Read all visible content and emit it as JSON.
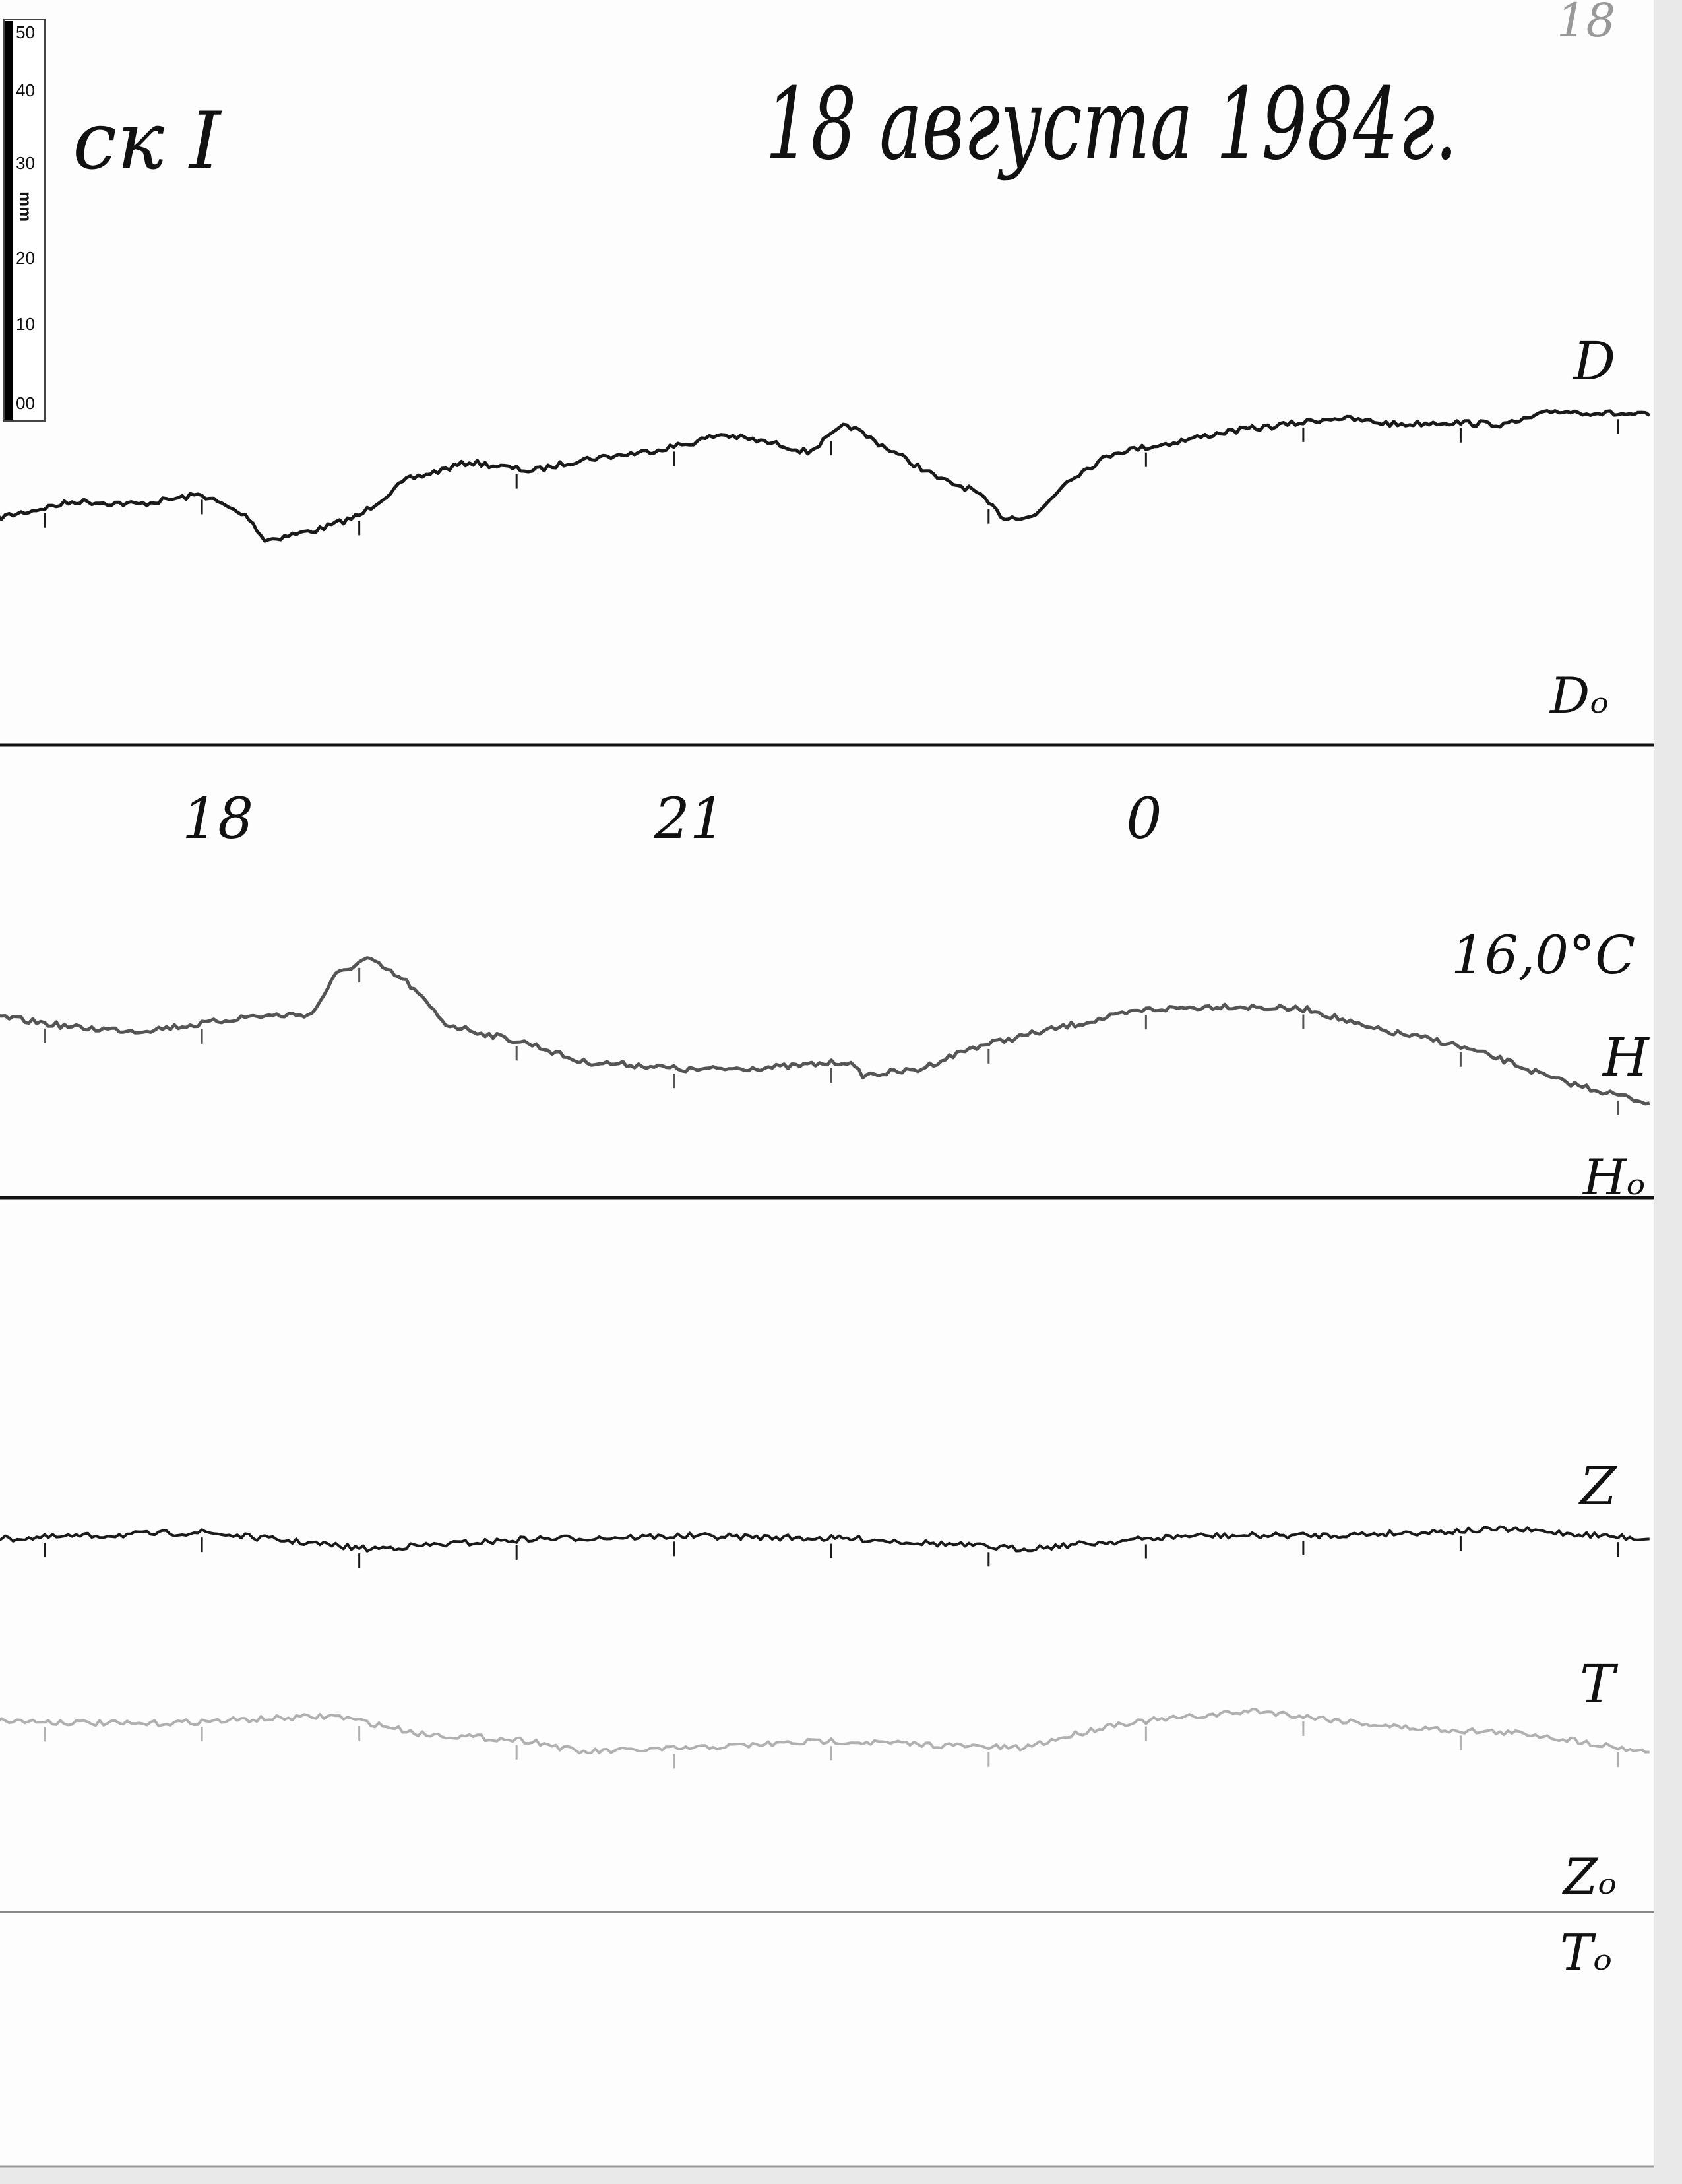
{
  "header": {
    "title": "18 августа 1984г.",
    "station_fragment": "ск I",
    "page_number": "18"
  },
  "ruler": {
    "unit": "mm",
    "labels": [
      "50",
      "40",
      "30",
      "20",
      "10",
      "00"
    ]
  },
  "labels": {
    "D": "D",
    "D0": "Dₒ",
    "H": "H",
    "H0": "Hₒ",
    "Z": "Z",
    "T": "T",
    "Z0": "Zₒ",
    "T0": "Tₒ",
    "temperature": "16,0°C"
  },
  "colors": {
    "paper": "#fdfdfd",
    "trace_dark": "#1a1a1a",
    "trace_H": "#555555",
    "trace_T": "#b0b0b0"
  },
  "chart_data": {
    "type": "line",
    "title": "18 августа 1984г.",
    "xlabel": "",
    "ylabel": "",
    "x_unit": "hours (continuous, values above 24 are the following day)",
    "y_unit": "mm above baseline",
    "time_ticks": [
      {
        "hour": 18,
        "label": "18"
      },
      {
        "hour": 21,
        "label": "21"
      },
      {
        "hour": 24,
        "label": "0"
      }
    ],
    "xlim": [
      16.7,
      27.2
    ],
    "grid": false,
    "series": [
      {
        "name": "D",
        "baseline": "Dₒ",
        "points": [
          [
            16.7,
            30.2
          ],
          [
            17.2,
            32.4
          ],
          [
            17.6,
            32.0
          ],
          [
            18.0,
            33.3
          ],
          [
            18.3,
            30.2
          ],
          [
            18.4,
            27.2
          ],
          [
            18.75,
            28.7
          ],
          [
            19.0,
            30.5
          ],
          [
            19.3,
            35.2
          ],
          [
            19.7,
            37.6
          ],
          [
            20.1,
            36.4
          ],
          [
            20.4,
            37.9
          ],
          [
            20.8,
            38.9
          ],
          [
            21.1,
            40.1
          ],
          [
            21.3,
            41.3
          ],
          [
            21.7,
            39.8
          ],
          [
            21.85,
            38.9
          ],
          [
            22.1,
            42.6
          ],
          [
            22.4,
            38.9
          ],
          [
            22.7,
            35.2
          ],
          [
            22.9,
            33.9
          ],
          [
            23.1,
            30.2
          ],
          [
            23.3,
            30.5
          ],
          [
            23.5,
            35.2
          ],
          [
            23.8,
            38.9
          ],
          [
            24.15,
            40.1
          ],
          [
            24.5,
            41.6
          ],
          [
            24.9,
            42.6
          ],
          [
            25.2,
            43.5
          ],
          [
            25.6,
            42.6
          ],
          [
            25.9,
            42.9
          ],
          [
            26.3,
            42.6
          ],
          [
            26.6,
            44.4
          ],
          [
            27.2,
            43.8
          ]
        ]
      },
      {
        "name": "H",
        "baseline": "Hₒ",
        "points": [
          [
            16.7,
            24.1
          ],
          [
            17.2,
            22.6
          ],
          [
            17.6,
            22.2
          ],
          [
            18.0,
            23.1
          ],
          [
            18.3,
            24.1
          ],
          [
            18.7,
            24.4
          ],
          [
            18.85,
            29.6
          ],
          [
            19.05,
            31.8
          ],
          [
            19.3,
            28.7
          ],
          [
            19.55,
            23.1
          ],
          [
            19.8,
            21.8
          ],
          [
            20.1,
            20.4
          ],
          [
            20.4,
            18.1
          ],
          [
            20.8,
            17.6
          ],
          [
            21.1,
            17.0
          ],
          [
            21.7,
            17.4
          ],
          [
            22.1,
            18.1
          ],
          [
            22.2,
            16.3
          ],
          [
            22.55,
            17.0
          ],
          [
            22.9,
            20.0
          ],
          [
            23.45,
            22.6
          ],
          [
            24.0,
            25.0
          ],
          [
            24.5,
            25.5
          ],
          [
            25.05,
            25.0
          ],
          [
            25.4,
            22.6
          ],
          [
            25.9,
            20.7
          ],
          [
            26.3,
            18.1
          ],
          [
            26.6,
            15.7
          ],
          [
            27.2,
            12.6
          ]
        ]
      },
      {
        "name": "Z",
        "baseline": "Zₒ",
        "points": [
          [
            16.7,
            49.6
          ],
          [
            18.0,
            50.5
          ],
          [
            19.05,
            48.3
          ],
          [
            20.1,
            49.6
          ],
          [
            21.1,
            50.0
          ],
          [
            22.2,
            49.6
          ],
          [
            23.2,
            48.3
          ],
          [
            24.25,
            50.0
          ],
          [
            25.2,
            50.1
          ],
          [
            26.3,
            50.9
          ],
          [
            27.2,
            49.6
          ]
        ]
      },
      {
        "name": "T",
        "baseline": "Tₒ",
        "points": [
          [
            16.7,
            25.5
          ],
          [
            17.6,
            25.0
          ],
          [
            18.85,
            26.1
          ],
          [
            19.4,
            23.7
          ],
          [
            20.1,
            22.8
          ],
          [
            20.4,
            21.3
          ],
          [
            21.1,
            21.8
          ],
          [
            22.0,
            22.8
          ],
          [
            23.2,
            21.8
          ],
          [
            23.8,
            25.0
          ],
          [
            24.7,
            26.8
          ],
          [
            25.6,
            24.6
          ],
          [
            26.45,
            23.7
          ],
          [
            27.2,
            21.3
          ]
        ]
      }
    ]
  }
}
